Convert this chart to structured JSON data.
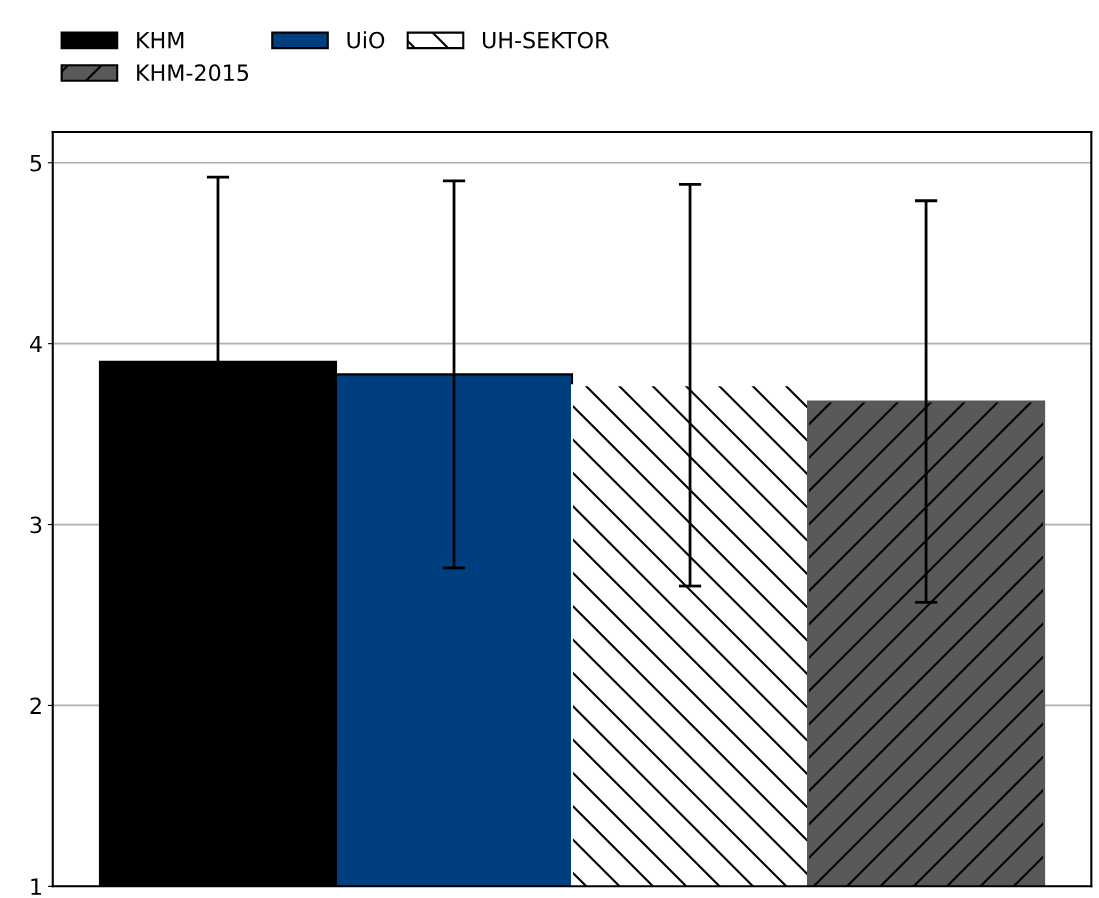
{
  "chart_data": {
    "type": "bar",
    "categories": [
      null
    ],
    "series": [
      {
        "name": "KHM",
        "color": "#000000",
        "values": [
          3.9
        ],
        "errors": [
          1.02
        ]
      },
      {
        "name": "UiO",
        "color": "#003f7f",
        "values": [
          3.83
        ],
        "errors": [
          1.07
        ]
      },
      {
        "name": "UH-SEKTOR",
        "color": "#ffffff",
        "values": [
          3.77
        ],
        "errors": [
          1.11
        ]
      },
      {
        "name": "KHM-2015",
        "color": "#595959",
        "values": [
          3.68
        ],
        "errors": [
          1.11
        ]
      }
    ],
    "ylim": [
      1,
      5.17
    ],
    "yticks": [
      1,
      2,
      3,
      4,
      5
    ],
    "grid": "y",
    "legend": "top left"
  }
}
